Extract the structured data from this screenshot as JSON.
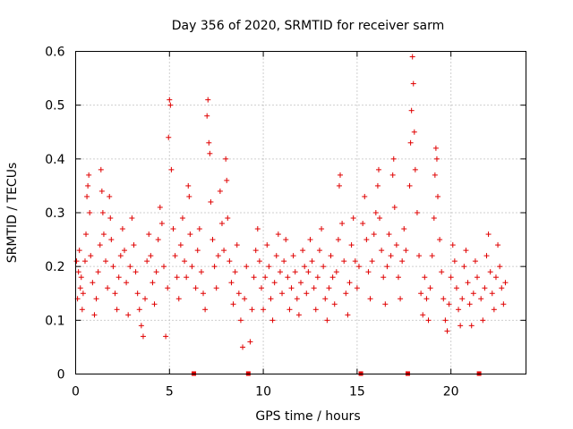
{
  "chart_data": {
    "type": "scatter",
    "title": "Day 356 of 2020, SRMTID for receiver sarm",
    "xlabel": "GPS time / hours",
    "ylabel": "SRMTID / TECUs",
    "xlim": [
      0,
      24
    ],
    "ylim": [
      0,
      0.6
    ],
    "xticks": [
      0,
      5,
      10,
      15,
      20
    ],
    "xtick_labels": [
      "0",
      "5",
      "10",
      "15",
      "20"
    ],
    "yticks": [
      0,
      0.1,
      0.2,
      0.3,
      0.4,
      0.5,
      0.6
    ],
    "ytick_labels": [
      "0",
      "0.1",
      "0.2",
      "0.3",
      "0.4",
      "0.5",
      "0.6"
    ],
    "grid": true,
    "marker": "plus",
    "color": "#e00000",
    "data_gap_markers_x": [
      6.3,
      9.2,
      15.2,
      17.7,
      21.5
    ],
    "series": [
      {
        "name": "SRMTID",
        "points": [
          [
            0.05,
            0.21
          ],
          [
            0.1,
            0.14
          ],
          [
            0.15,
            0.19
          ],
          [
            0.2,
            0.23
          ],
          [
            0.25,
            0.16
          ],
          [
            0.3,
            0.18
          ],
          [
            0.35,
            0.12
          ],
          [
            0.4,
            0.15
          ],
          [
            0.5,
            0.21
          ],
          [
            0.55,
            0.26
          ],
          [
            0.6,
            0.33
          ],
          [
            0.65,
            0.35
          ],
          [
            0.7,
            0.37
          ],
          [
            0.75,
            0.3
          ],
          [
            0.8,
            0.22
          ],
          [
            0.9,
            0.17
          ],
          [
            1.0,
            0.11
          ],
          [
            1.1,
            0.14
          ],
          [
            1.2,
            0.19
          ],
          [
            1.3,
            0.24
          ],
          [
            1.35,
            0.38
          ],
          [
            1.4,
            0.34
          ],
          [
            1.45,
            0.3
          ],
          [
            1.5,
            0.26
          ],
          [
            1.6,
            0.21
          ],
          [
            1.7,
            0.16
          ],
          [
            1.8,
            0.33
          ],
          [
            1.85,
            0.29
          ],
          [
            1.9,
            0.25
          ],
          [
            2.0,
            0.2
          ],
          [
            2.1,
            0.15
          ],
          [
            2.2,
            0.12
          ],
          [
            2.3,
            0.18
          ],
          [
            2.4,
            0.22
          ],
          [
            2.5,
            0.27
          ],
          [
            2.6,
            0.23
          ],
          [
            2.7,
            0.17
          ],
          [
            2.8,
            0.11
          ],
          [
            2.9,
            0.2
          ],
          [
            3.0,
            0.29
          ],
          [
            3.1,
            0.24
          ],
          [
            3.2,
            0.19
          ],
          [
            3.3,
            0.15
          ],
          [
            3.4,
            0.12
          ],
          [
            3.5,
            0.09
          ],
          [
            3.6,
            0.07
          ],
          [
            3.7,
            0.14
          ],
          [
            3.8,
            0.21
          ],
          [
            3.9,
            0.26
          ],
          [
            4.0,
            0.22
          ],
          [
            4.1,
            0.17
          ],
          [
            4.2,
            0.13
          ],
          [
            4.3,
            0.19
          ],
          [
            4.4,
            0.25
          ],
          [
            4.5,
            0.31
          ],
          [
            4.6,
            0.28
          ],
          [
            4.7,
            0.2
          ],
          [
            4.8,
            0.07
          ],
          [
            4.9,
            0.16
          ],
          [
            4.95,
            0.44
          ],
          [
            5.0,
            0.51
          ],
          [
            5.05,
            0.5
          ],
          [
            5.1,
            0.38
          ],
          [
            5.2,
            0.27
          ],
          [
            5.3,
            0.22
          ],
          [
            5.4,
            0.18
          ],
          [
            5.5,
            0.14
          ],
          [
            5.6,
            0.24
          ],
          [
            5.7,
            0.29
          ],
          [
            5.8,
            0.21
          ],
          [
            5.9,
            0.18
          ],
          [
            6.0,
            0.35
          ],
          [
            6.05,
            0.33
          ],
          [
            6.1,
            0.26
          ],
          [
            6.2,
            0.2
          ],
          [
            6.4,
            0.16
          ],
          [
            6.5,
            0.23
          ],
          [
            6.6,
            0.27
          ],
          [
            6.7,
            0.19
          ],
          [
            6.8,
            0.15
          ],
          [
            6.9,
            0.12
          ],
          [
            7.0,
            0.48
          ],
          [
            7.05,
            0.51
          ],
          [
            7.1,
            0.43
          ],
          [
            7.15,
            0.41
          ],
          [
            7.2,
            0.32
          ],
          [
            7.3,
            0.25
          ],
          [
            7.4,
            0.2
          ],
          [
            7.5,
            0.16
          ],
          [
            7.6,
            0.22
          ],
          [
            7.7,
            0.34
          ],
          [
            7.8,
            0.28
          ],
          [
            7.9,
            0.23
          ],
          [
            8.0,
            0.4
          ],
          [
            8.05,
            0.36
          ],
          [
            8.1,
            0.29
          ],
          [
            8.2,
            0.21
          ],
          [
            8.3,
            0.17
          ],
          [
            8.4,
            0.13
          ],
          [
            8.5,
            0.19
          ],
          [
            8.6,
            0.24
          ],
          [
            8.7,
            0.15
          ],
          [
            8.8,
            0.1
          ],
          [
            8.9,
            0.05
          ],
          [
            9.0,
            0.14
          ],
          [
            9.1,
            0.2
          ],
          [
            9.3,
            0.06
          ],
          [
            9.4,
            0.12
          ],
          [
            9.5,
            0.18
          ],
          [
            9.6,
            0.23
          ],
          [
            9.7,
            0.27
          ],
          [
            9.8,
            0.21
          ],
          [
            9.9,
            0.16
          ],
          [
            10.0,
            0.12
          ],
          [
            10.1,
            0.18
          ],
          [
            10.2,
            0.24
          ],
          [
            10.3,
            0.2
          ],
          [
            10.4,
            0.14
          ],
          [
            10.5,
            0.1
          ],
          [
            10.6,
            0.17
          ],
          [
            10.7,
            0.22
          ],
          [
            10.8,
            0.26
          ],
          [
            10.9,
            0.19
          ],
          [
            11.0,
            0.15
          ],
          [
            11.1,
            0.21
          ],
          [
            11.2,
            0.25
          ],
          [
            11.3,
            0.18
          ],
          [
            11.4,
            0.12
          ],
          [
            11.5,
            0.16
          ],
          [
            11.6,
            0.22
          ],
          [
            11.7,
            0.19
          ],
          [
            11.8,
            0.14
          ],
          [
            11.9,
            0.11
          ],
          [
            12.0,
            0.17
          ],
          [
            12.1,
            0.23
          ],
          [
            12.2,
            0.2
          ],
          [
            12.3,
            0.15
          ],
          [
            12.4,
            0.19
          ],
          [
            12.5,
            0.25
          ],
          [
            12.6,
            0.21
          ],
          [
            12.7,
            0.16
          ],
          [
            12.8,
            0.12
          ],
          [
            12.9,
            0.18
          ],
          [
            13.0,
            0.23
          ],
          [
            13.1,
            0.27
          ],
          [
            13.2,
            0.2
          ],
          [
            13.3,
            0.14
          ],
          [
            13.4,
            0.1
          ],
          [
            13.5,
            0.16
          ],
          [
            13.6,
            0.22
          ],
          [
            13.7,
            0.18
          ],
          [
            13.8,
            0.13
          ],
          [
            13.9,
            0.19
          ],
          [
            14.0,
            0.25
          ],
          [
            14.05,
            0.35
          ],
          [
            14.1,
            0.37
          ],
          [
            14.2,
            0.28
          ],
          [
            14.3,
            0.21
          ],
          [
            14.4,
            0.15
          ],
          [
            14.5,
            0.11
          ],
          [
            14.6,
            0.17
          ],
          [
            14.7,
            0.24
          ],
          [
            14.8,
            0.29
          ],
          [
            14.9,
            0.21
          ],
          [
            15.0,
            0.16
          ],
          [
            15.1,
            0.2
          ],
          [
            15.3,
            0.28
          ],
          [
            15.4,
            0.33
          ],
          [
            15.5,
            0.25
          ],
          [
            15.6,
            0.19
          ],
          [
            15.7,
            0.14
          ],
          [
            15.8,
            0.21
          ],
          [
            15.9,
            0.26
          ],
          [
            16.0,
            0.3
          ],
          [
            16.1,
            0.35
          ],
          [
            16.15,
            0.38
          ],
          [
            16.2,
            0.29
          ],
          [
            16.3,
            0.23
          ],
          [
            16.4,
            0.18
          ],
          [
            16.5,
            0.13
          ],
          [
            16.6,
            0.2
          ],
          [
            16.7,
            0.26
          ],
          [
            16.8,
            0.22
          ],
          [
            16.9,
            0.37
          ],
          [
            16.95,
            0.4
          ],
          [
            17.0,
            0.31
          ],
          [
            17.1,
            0.24
          ],
          [
            17.2,
            0.18
          ],
          [
            17.3,
            0.14
          ],
          [
            17.4,
            0.21
          ],
          [
            17.5,
            0.27
          ],
          [
            17.6,
            0.23
          ],
          [
            17.8,
            0.35
          ],
          [
            17.85,
            0.43
          ],
          [
            17.9,
            0.49
          ],
          [
            17.95,
            0.59
          ],
          [
            18.0,
            0.54
          ],
          [
            18.05,
            0.45
          ],
          [
            18.1,
            0.38
          ],
          [
            18.2,
            0.3
          ],
          [
            18.3,
            0.22
          ],
          [
            18.4,
            0.15
          ],
          [
            18.5,
            0.11
          ],
          [
            18.6,
            0.18
          ],
          [
            18.7,
            0.14
          ],
          [
            18.8,
            0.1
          ],
          [
            18.9,
            0.16
          ],
          [
            19.0,
            0.22
          ],
          [
            19.1,
            0.29
          ],
          [
            19.15,
            0.37
          ],
          [
            19.2,
            0.42
          ],
          [
            19.25,
            0.4
          ],
          [
            19.3,
            0.33
          ],
          [
            19.4,
            0.25
          ],
          [
            19.5,
            0.19
          ],
          [
            19.6,
            0.14
          ],
          [
            19.7,
            0.1
          ],
          [
            19.8,
            0.08
          ],
          [
            19.9,
            0.13
          ],
          [
            20.0,
            0.18
          ],
          [
            20.1,
            0.24
          ],
          [
            20.2,
            0.21
          ],
          [
            20.3,
            0.16
          ],
          [
            20.4,
            0.12
          ],
          [
            20.5,
            0.09
          ],
          [
            20.6,
            0.14
          ],
          [
            20.7,
            0.2
          ],
          [
            20.8,
            0.23
          ],
          [
            20.9,
            0.17
          ],
          [
            21.0,
            0.13
          ],
          [
            21.1,
            0.09
          ],
          [
            21.2,
            0.15
          ],
          [
            21.3,
            0.21
          ],
          [
            21.4,
            0.18
          ],
          [
            21.6,
            0.14
          ],
          [
            21.7,
            0.1
          ],
          [
            21.8,
            0.16
          ],
          [
            21.9,
            0.22
          ],
          [
            22.0,
            0.26
          ],
          [
            22.1,
            0.19
          ],
          [
            22.2,
            0.15
          ],
          [
            22.3,
            0.12
          ],
          [
            22.4,
            0.18
          ],
          [
            22.5,
            0.24
          ],
          [
            22.6,
            0.2
          ],
          [
            22.7,
            0.16
          ],
          [
            22.8,
            0.13
          ],
          [
            22.9,
            0.17
          ]
        ]
      }
    ]
  }
}
